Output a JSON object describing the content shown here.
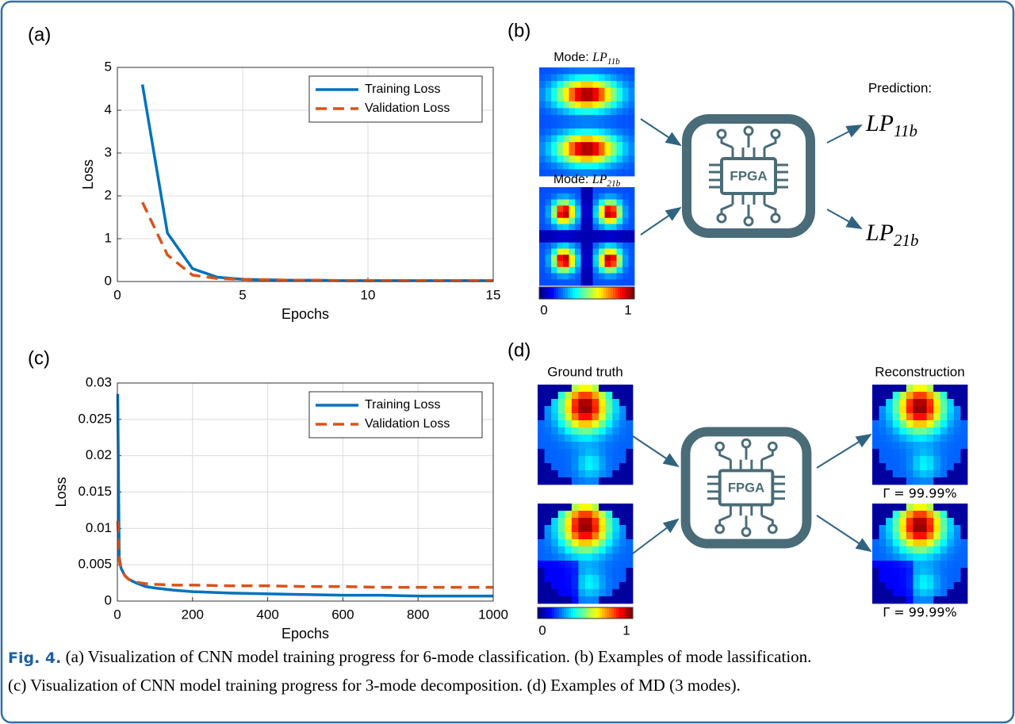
{
  "panel_labels": [
    "(a)",
    "(b)",
    "(c)",
    "(d)"
  ],
  "chart_data": [
    {
      "type": "line",
      "x_label": "Epochs",
      "y_label": "Loss",
      "x": [
        1,
        2,
        3,
        4,
        5,
        6,
        7,
        8,
        9,
        10,
        11,
        12,
        13,
        14,
        15
      ],
      "series": [
        {
          "name": "Training Loss",
          "color": "#0072bd",
          "style": "solid",
          "values": [
            4.6,
            1.13,
            0.3,
            0.1,
            0.05,
            0.04,
            0.03,
            0.03,
            0.02,
            0.02,
            0.02,
            0.02,
            0.02,
            0.02,
            0.02
          ]
        },
        {
          "name": "Validation Loss",
          "color": "#d95319",
          "style": "dashed",
          "values": [
            1.85,
            0.62,
            0.15,
            0.07,
            0.05,
            0.04,
            0.03,
            0.03,
            0.02,
            0.02,
            0.02,
            0.02,
            0.02,
            0.02,
            0.02
          ]
        }
      ],
      "xlim": [
        0,
        15
      ],
      "xticks": [
        0,
        5,
        10,
        15
      ],
      "ylim": [
        0,
        5
      ],
      "yticks": [
        0,
        1,
        2,
        3,
        4,
        5
      ],
      "grid": true,
      "legend": "upper-right"
    },
    {
      "type": "line",
      "x_label": "Epochs",
      "y_label": "Loss",
      "x": [
        1,
        5,
        10,
        20,
        30,
        50,
        75,
        100,
        150,
        200,
        300,
        400,
        500,
        600,
        700,
        800,
        900,
        1000
      ],
      "series": [
        {
          "name": "Training Loss",
          "color": "#0072bd",
          "style": "solid",
          "values": [
            0.0285,
            0.006,
            0.0045,
            0.0035,
            0.003,
            0.0025,
            0.002,
            0.0018,
            0.0015,
            0.0013,
            0.0011,
            0.001,
            0.0009,
            0.0008,
            0.0008,
            0.0007,
            0.0007,
            0.0007
          ]
        },
        {
          "name": "Validation Loss",
          "color": "#d95319",
          "style": "dashed",
          "values": [
            0.011,
            0.0055,
            0.0045,
            0.0035,
            0.003,
            0.0026,
            0.0024,
            0.0023,
            0.0022,
            0.0022,
            0.0021,
            0.0021,
            0.002,
            0.002,
            0.0019,
            0.0019,
            0.0019,
            0.0019
          ]
        }
      ],
      "xlim": [
        0,
        1000
      ],
      "xticks": [
        0,
        200,
        400,
        600,
        800,
        1000
      ],
      "ylim": [
        0,
        0.03
      ],
      "yticks": [
        0,
        0.005,
        0.01,
        0.015,
        0.02,
        0.025,
        0.03
      ],
      "grid": true,
      "legend": "upper-right"
    }
  ],
  "panel_b": {
    "mode_labels": [
      {
        "prefix": "Mode:",
        "base": "LP",
        "sub": "11b"
      },
      {
        "prefix": "Mode:",
        "base": "LP",
        "sub": "21b"
      }
    ],
    "chip": "FPGA",
    "prediction_title": "Prediction:",
    "predictions": [
      {
        "base": "LP",
        "sub": "11b"
      },
      {
        "base": "LP",
        "sub": "21b"
      }
    ],
    "colorbar_ticks": [
      0,
      1
    ]
  },
  "panel_d": {
    "input_title": "Ground truth",
    "output_title": "Reconstruction",
    "chip": "FPGA",
    "fidelities": [
      "Γ = 99.99%",
      "Γ = 99.99%"
    ],
    "colorbar_ticks": [
      0,
      1
    ]
  },
  "caption": {
    "label": "Fig. 4.",
    "lines": [
      " (a) Visualization of CNN model training progress for 6-mode classification. (b) Examples of mode lassification.",
      "(c) Visualization of CNN model training progress for 3-mode decomposition. (d) Examples of MD (3 modes)."
    ]
  }
}
